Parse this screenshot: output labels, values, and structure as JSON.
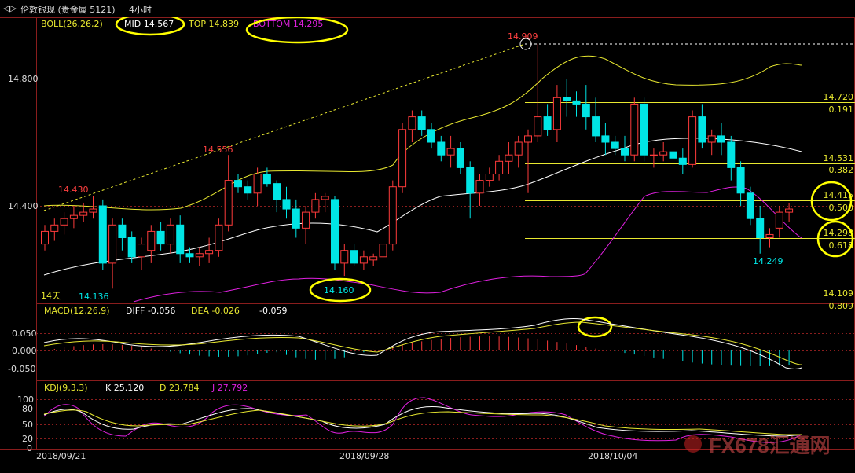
{
  "window": {
    "nav_icon": "chevron-left-right-icon",
    "title": "伦敦银现 (贵金属 5121)",
    "period": "4小时"
  },
  "colors": {
    "up": "#ff3b3b",
    "down": "#00e5e5",
    "boll_top": "#e8e830",
    "boll_mid": "#ffffff",
    "boll_bottom": "#e020e0",
    "grid": "#8a1d1d",
    "fib": "#e8e830"
  },
  "boll_panel": {
    "header": "BOLL(26,26,2)",
    "mid": "MID 14.567",
    "top": "TOP 14.839",
    "bottom": "BOTTOM 14.295",
    "y_ticks": [
      "14.800",
      "14.400"
    ],
    "period_label": "14天",
    "annotations": {
      "peak": "14.909",
      "h1": "14.556",
      "h2": "14.430",
      "low1": "14.136",
      "low2": "14.160",
      "low3": "14.249"
    },
    "fib_levels": [
      {
        "price": "14.720",
        "ratio": "0.191"
      },
      {
        "price": "14.531",
        "ratio": "0.382"
      },
      {
        "price": "14.415",
        "ratio": "0.500"
      },
      {
        "price": "14.298",
        "ratio": "0.618"
      },
      {
        "price": "14.109",
        "ratio": "0.809"
      }
    ]
  },
  "macd_panel": {
    "header": "MACD(12,26,9)",
    "diff": "DIFF -0.056",
    "dea": "DEA -0.026",
    "macd": "-0.059",
    "y_ticks": [
      "0.050",
      "0.000",
      "-0.050"
    ]
  },
  "kdj_panel": {
    "header": "KDJ(9,3,3)",
    "k": "K 25.120",
    "d": "D 23.784",
    "j": "J 27.792",
    "y_ticks": [
      "100",
      "80",
      "50",
      "20",
      "0"
    ]
  },
  "x_axis": {
    "dates": [
      "2018/09/21",
      "2018/09/28",
      "2018/10/04"
    ]
  },
  "watermark": "FX678汇通网",
  "chart_data": {
    "type": "candlestick",
    "candles": [
      [
        14.28,
        14.34,
        14.26,
        14.32
      ],
      [
        14.32,
        14.36,
        14.29,
        14.34
      ],
      [
        14.34,
        14.38,
        14.31,
        14.36
      ],
      [
        14.36,
        14.4,
        14.33,
        14.37
      ],
      [
        14.37,
        14.41,
        14.35,
        14.38
      ],
      [
        14.38,
        14.43,
        14.36,
        14.39
      ],
      [
        14.4,
        14.42,
        14.2,
        14.22
      ],
      [
        14.22,
        14.36,
        14.14,
        14.34
      ],
      [
        14.34,
        14.36,
        14.26,
        14.3
      ],
      [
        14.3,
        14.32,
        14.22,
        14.24
      ],
      [
        14.24,
        14.3,
        14.2,
        14.28
      ],
      [
        14.26,
        14.34,
        14.22,
        14.32
      ],
      [
        14.32,
        14.35,
        14.26,
        14.28
      ],
      [
        14.28,
        14.36,
        14.25,
        14.34
      ],
      [
        14.34,
        14.37,
        14.22,
        14.25
      ],
      [
        14.25,
        14.27,
        14.22,
        14.24
      ],
      [
        14.24,
        14.27,
        14.21,
        14.25
      ],
      [
        14.25,
        14.3,
        14.22,
        14.26
      ],
      [
        14.26,
        14.36,
        14.24,
        14.34
      ],
      [
        14.34,
        14.56,
        14.32,
        14.48
      ],
      [
        14.48,
        14.5,
        14.44,
        14.46
      ],
      [
        14.46,
        14.48,
        14.42,
        14.44
      ],
      [
        14.44,
        14.52,
        14.4,
        14.5
      ],
      [
        14.5,
        14.52,
        14.46,
        14.47
      ],
      [
        14.47,
        14.48,
        14.38,
        14.42
      ],
      [
        14.42,
        14.46,
        14.36,
        14.39
      ],
      [
        14.39,
        14.42,
        14.3,
        14.33
      ],
      [
        14.33,
        14.4,
        14.28,
        14.38
      ],
      [
        14.38,
        14.44,
        14.36,
        14.42
      ],
      [
        14.42,
        14.44,
        14.38,
        14.43
      ],
      [
        14.42,
        14.43,
        14.2,
        14.22
      ],
      [
        14.22,
        14.28,
        14.18,
        14.26
      ],
      [
        14.26,
        14.28,
        14.21,
        14.22
      ],
      [
        14.22,
        14.26,
        14.2,
        14.24
      ],
      [
        14.23,
        14.25,
        14.21,
        14.24
      ],
      [
        14.24,
        14.3,
        14.22,
        14.28
      ],
      [
        14.28,
        14.48,
        14.26,
        14.46
      ],
      [
        14.46,
        14.66,
        14.44,
        14.64
      ],
      [
        14.64,
        14.7,
        14.6,
        14.68
      ],
      [
        14.68,
        14.7,
        14.62,
        14.64
      ],
      [
        14.64,
        14.66,
        14.58,
        14.6
      ],
      [
        14.6,
        14.62,
        14.54,
        14.56
      ],
      [
        14.56,
        14.62,
        14.52,
        14.58
      ],
      [
        14.58,
        14.6,
        14.5,
        14.52
      ],
      [
        14.52,
        14.54,
        14.36,
        14.44
      ],
      [
        14.44,
        14.5,
        14.4,
        14.48
      ],
      [
        14.48,
        14.52,
        14.46,
        14.5
      ],
      [
        14.5,
        14.56,
        14.48,
        14.54
      ],
      [
        14.54,
        14.6,
        14.5,
        14.56
      ],
      [
        14.56,
        14.62,
        14.52,
        14.6
      ],
      [
        14.6,
        14.64,
        14.44,
        14.62
      ],
      [
        14.62,
        14.909,
        14.6,
        14.68
      ],
      [
        14.68,
        14.72,
        14.62,
        14.64
      ],
      [
        14.64,
        14.78,
        14.6,
        14.74
      ],
      [
        14.74,
        14.8,
        14.68,
        14.73
      ],
      [
        14.73,
        14.76,
        14.68,
        14.72
      ],
      [
        14.72,
        14.78,
        14.64,
        14.68
      ],
      [
        14.68,
        14.74,
        14.6,
        14.62
      ],
      [
        14.62,
        14.66,
        14.56,
        14.6
      ],
      [
        14.6,
        14.62,
        14.56,
        14.58
      ],
      [
        14.58,
        14.62,
        14.54,
        14.56
      ],
      [
        14.56,
        14.74,
        14.54,
        14.72
      ],
      [
        14.72,
        14.74,
        14.54,
        14.56
      ],
      [
        14.56,
        14.58,
        14.52,
        14.56
      ],
      [
        14.56,
        14.6,
        14.54,
        14.57
      ],
      [
        14.57,
        14.59,
        14.53,
        14.55
      ],
      [
        14.55,
        14.58,
        14.5,
        14.53
      ],
      [
        14.53,
        14.7,
        14.52,
        14.68
      ],
      [
        14.68,
        14.72,
        14.58,
        14.6
      ],
      [
        14.6,
        14.64,
        14.56,
        14.62
      ],
      [
        14.62,
        14.66,
        14.56,
        14.6
      ],
      [
        14.6,
        14.62,
        14.48,
        14.52
      ],
      [
        14.52,
        14.54,
        14.4,
        14.44
      ],
      [
        14.44,
        14.46,
        14.34,
        14.36
      ],
      [
        14.36,
        14.4,
        14.25,
        14.3
      ],
      [
        14.3,
        14.33,
        14.27,
        14.31
      ],
      [
        14.33,
        14.4,
        14.3,
        14.38
      ],
      [
        14.38,
        14.41,
        14.35,
        14.39
      ]
    ]
  }
}
